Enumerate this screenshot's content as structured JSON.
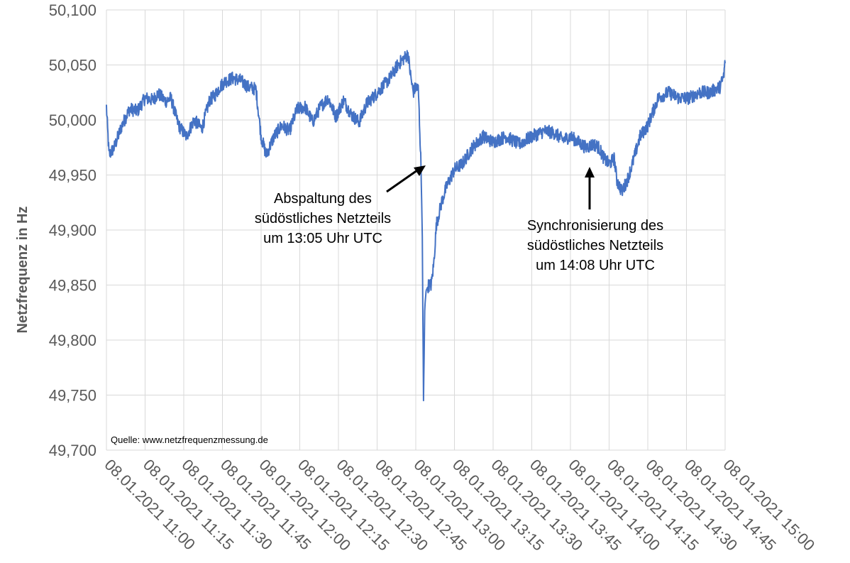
{
  "chart_data": {
    "type": "line",
    "title": "",
    "xlabel": "",
    "ylabel": "Netzfrequenz in Hz",
    "ylim": [
      49.7,
      50.1
    ],
    "grid": true,
    "legend": "none",
    "line_color": "#4472C4",
    "y_ticks": [
      "49,700",
      "49,750",
      "49,800",
      "49,850",
      "49,900",
      "49,950",
      "50,000",
      "50,050",
      "50,100"
    ],
    "x_ticks": [
      "08.01.2021 11:00",
      "08.01.2021 11:15",
      "08.01.2021 11:30",
      "08.01.2021 11:45",
      "08.01.2021 12:00",
      "08.01.2021 12:15",
      "08.01.2021 12:30",
      "08.01.2021 12:45",
      "08.01.2021 13:00",
      "08.01.2021 13:15",
      "08.01.2021 13:30",
      "08.01.2021 13:45",
      "08.01.2021 14:00",
      "08.01.2021 14:15",
      "08.01.2021 14:30",
      "08.01.2021 14:45",
      "08.01.2021 15:00"
    ],
    "x_range_minutes": [
      0,
      240
    ],
    "series": [
      {
        "x_minutes": [
          0,
          1,
          3,
          6,
          9,
          12,
          15,
          18,
          20,
          23,
          25,
          28,
          31,
          34,
          37,
          40,
          42,
          44,
          46,
          49,
          52,
          55,
          58,
          60,
          62,
          65,
          68,
          71,
          74,
          77,
          80,
          83,
          86,
          89,
          92,
          95,
          98,
          101,
          104,
          107,
          110,
          113,
          115,
          117,
          118,
          119,
          120,
          121,
          122,
          122.5,
          123,
          123.5,
          124,
          125,
          126,
          127,
          128,
          130,
          132,
          135,
          138,
          142,
          146,
          150,
          155,
          160,
          165,
          170,
          174,
          177,
          180,
          183,
          186,
          189,
          191,
          193,
          195,
          197,
          198,
          200,
          202,
          204,
          207,
          210,
          214,
          218,
          222,
          226,
          230,
          234,
          238,
          239.5,
          240
        ],
        "values": [
          50.012,
          49.968,
          49.975,
          49.995,
          50.01,
          50.008,
          50.02,
          50.018,
          50.024,
          50.017,
          50.02,
          49.995,
          49.985,
          50.0,
          49.992,
          50.018,
          50.022,
          50.03,
          50.035,
          50.038,
          50.036,
          50.03,
          50.028,
          49.985,
          49.968,
          49.985,
          49.995,
          49.99,
          50.01,
          50.012,
          49.998,
          50.012,
          50.02,
          50.003,
          50.018,
          50.005,
          49.998,
          50.015,
          50.022,
          50.03,
          50.038,
          50.05,
          50.055,
          50.06,
          50.04,
          50.025,
          50.03,
          50.028,
          49.96,
          49.9,
          49.745,
          49.83,
          49.845,
          49.85,
          49.85,
          49.87,
          49.905,
          49.925,
          49.94,
          49.955,
          49.96,
          49.975,
          49.985,
          49.98,
          49.985,
          49.978,
          49.985,
          49.99,
          49.988,
          49.982,
          49.985,
          49.98,
          49.975,
          49.978,
          49.975,
          49.965,
          49.96,
          49.965,
          49.945,
          49.935,
          49.945,
          49.96,
          49.985,
          49.995,
          50.02,
          50.025,
          50.02,
          50.02,
          50.025,
          50.025,
          50.03,
          50.04,
          50.055
        ]
      }
    ]
  },
  "annotations": {
    "split": [
      "Abspaltung des",
      "südöstliches Netzteils",
      "um 13:05 Uhr UTC"
    ],
    "sync": [
      "Synchronisierung des",
      "südöstliches Netzteils",
      "um 14:08 Uhr UTC"
    ],
    "source": "Quelle: www.netzfrequenzmessung.de"
  }
}
